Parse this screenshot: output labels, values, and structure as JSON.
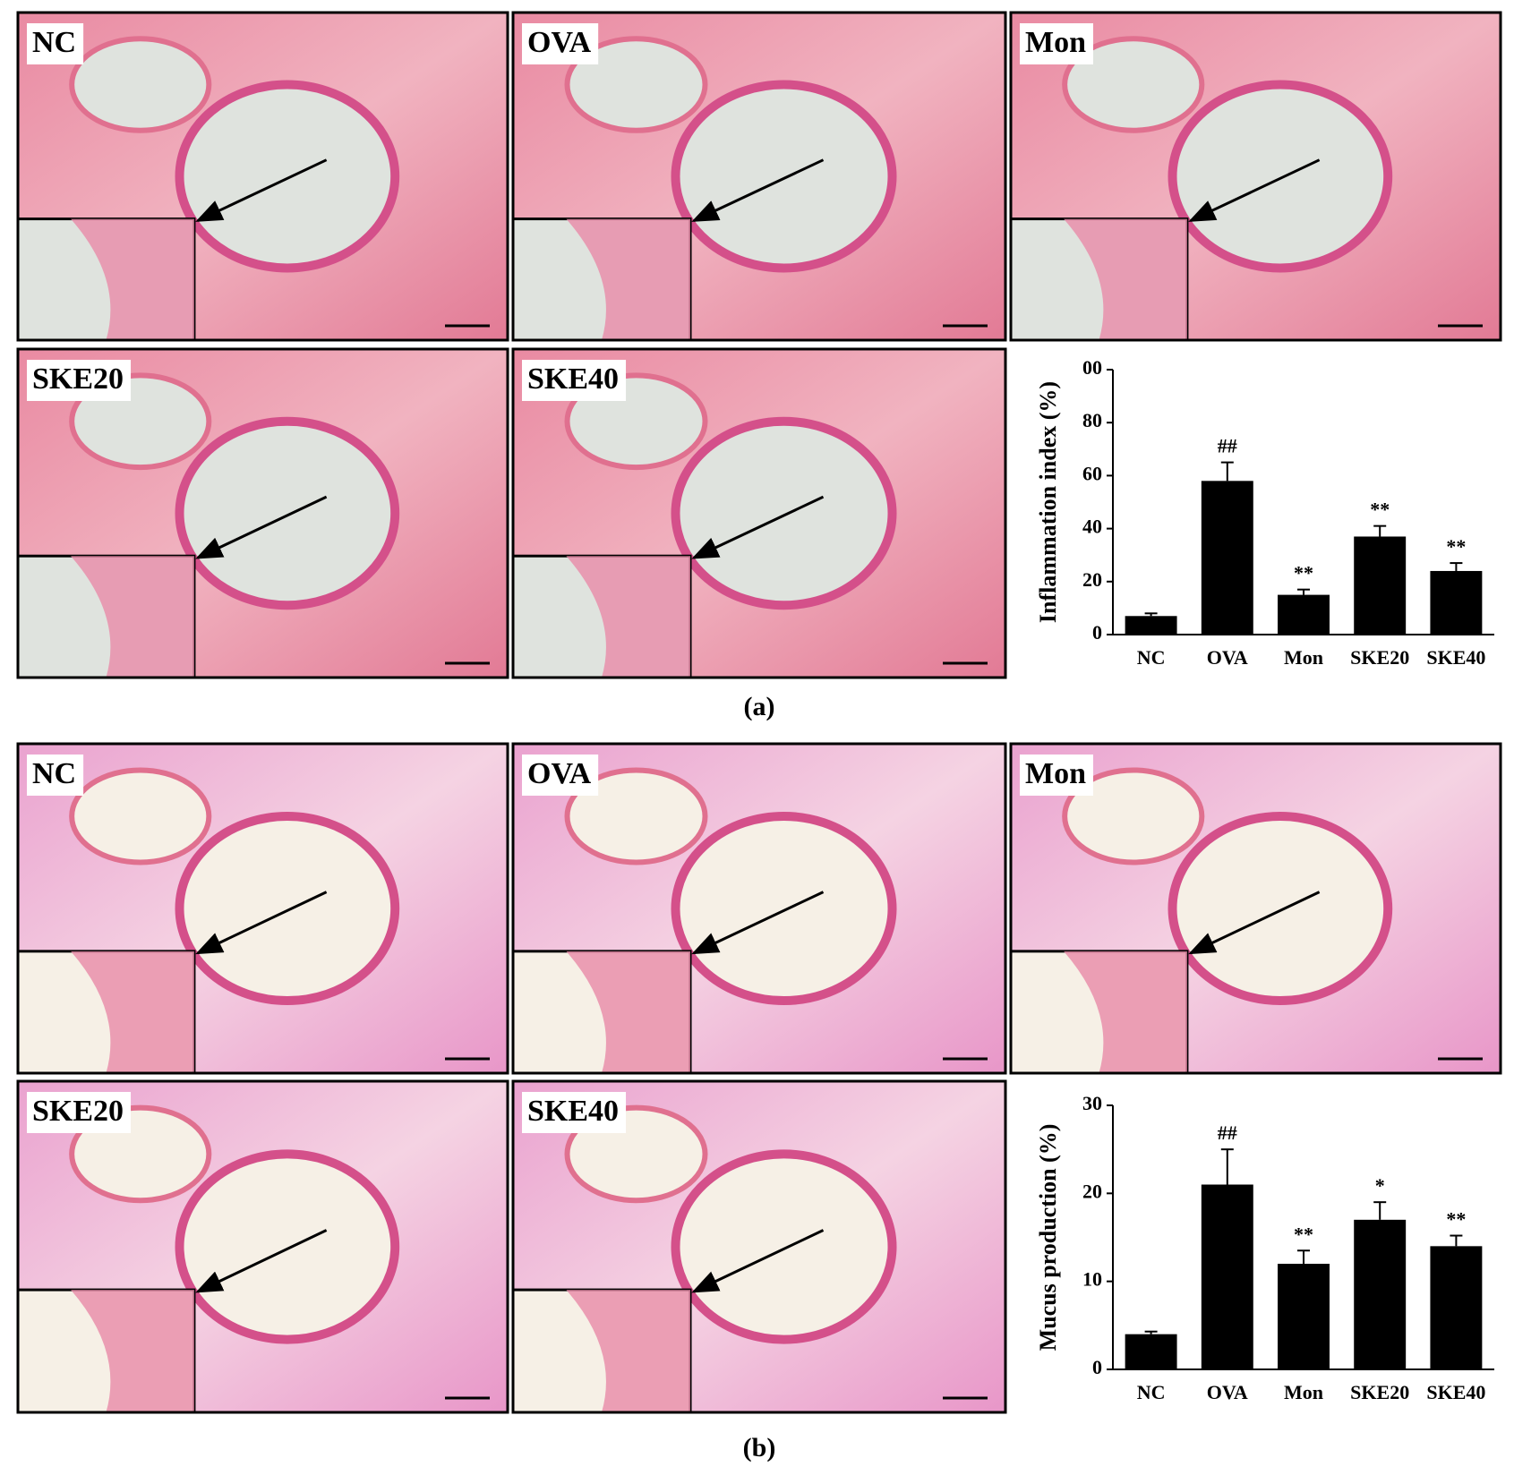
{
  "panels": [
    {
      "caption": "(a)",
      "labels": [
        "NC",
        "OVA",
        "Mon",
        "SKE20",
        "SKE40"
      ]
    },
    {
      "caption": "(b)",
      "labels": [
        "NC",
        "OVA",
        "Mon",
        "SKE20",
        "SKE40"
      ]
    }
  ],
  "chart_data": [
    {
      "type": "bar",
      "y_label": "Inflammation index (%)",
      "categories": [
        "NC",
        "OVA",
        "Mon",
        "SKE20",
        "SKE40"
      ],
      "values": [
        7,
        58,
        15,
        37,
        24
      ],
      "errors": [
        1,
        7,
        2,
        4,
        3
      ],
      "annotations": [
        null,
        "##",
        "**",
        "**",
        "**"
      ],
      "color": "#000000",
      "ylim": [
        0,
        100
      ],
      "yticks": [
        0,
        20,
        40,
        60,
        80,
        {
          "value": 100,
          "label": "00"
        }
      ]
    },
    {
      "type": "bar",
      "y_label": "Mucus production (%)",
      "categories": [
        "NC",
        "OVA",
        "Mon",
        "SKE20",
        "SKE40"
      ],
      "values": [
        4,
        21,
        12,
        17,
        14
      ],
      "errors": [
        0.3,
        4,
        1.5,
        2,
        1.2
      ],
      "annotations": [
        null,
        "##",
        "**",
        "*",
        "**"
      ],
      "color": "#000000",
      "ylim": [
        0,
        30
      ],
      "yticks": [
        0,
        10,
        20,
        30
      ]
    }
  ]
}
